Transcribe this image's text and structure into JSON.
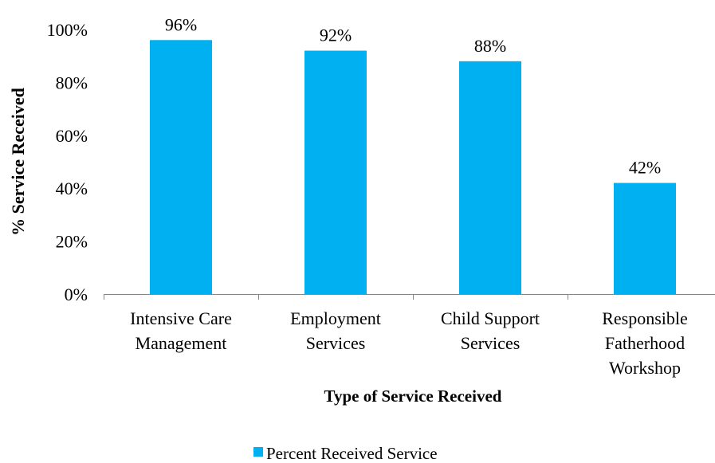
{
  "chart_data": {
    "type": "bar",
    "categories": [
      [
        "Intensive Care",
        "Management"
      ],
      [
        "Employment",
        "Services"
      ],
      [
        "Child Support",
        "Services"
      ],
      [
        "Responsible",
        "Fatherhood",
        "Workshop"
      ]
    ],
    "series": [
      {
        "name": "Percent Received Service",
        "values": [
          96,
          92,
          88,
          42
        ],
        "data_labels": [
          "96%",
          "92%",
          "88%",
          "42%"
        ],
        "color": "#00B0F0"
      }
    ],
    "xlabel": "Type of Service Received",
    "ylabel": "% Service Received",
    "ylim": [
      0,
      100
    ],
    "yticks": [
      0,
      20,
      40,
      60,
      80,
      100
    ],
    "ytick_labels": [
      "0%",
      "20%",
      "40%",
      "60%",
      "80%",
      "100%"
    ],
    "grid": false,
    "legend_position": "bottom"
  }
}
